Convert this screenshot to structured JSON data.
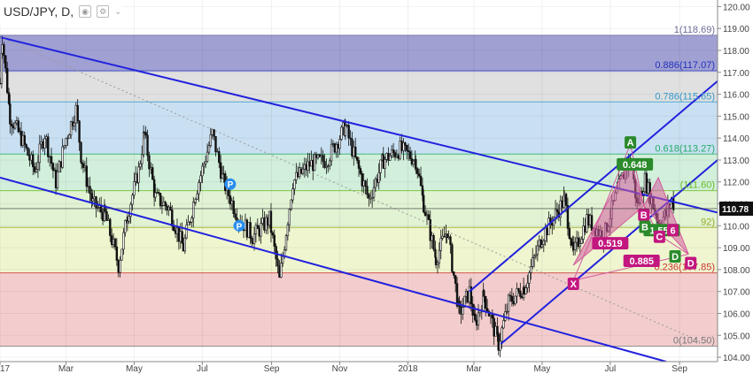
{
  "header": {
    "symbol_label": "USD/JPY, D,",
    "icons": [
      "eye-icon",
      "settings-icon",
      "chevron-down-icon"
    ]
  },
  "chart_data": {
    "type": "candlestick",
    "price_axis": {
      "range": [
        103.8,
        120.3
      ],
      "ticks": [
        "120.00",
        "119.00",
        "118.00",
        "117.00",
        "116.00",
        "115.00",
        "114.00",
        "113.00",
        "112.00",
        "111.00",
        "110.00",
        "109.00",
        "108.00",
        "107.00",
        "106.00",
        "105.00",
        "104.00"
      ],
      "current_price": "110.78",
      "current_price_value": 110.78
    },
    "time_axis": {
      "range": [
        "2017-01-01",
        "2018-10-05"
      ],
      "ticks": [
        {
          "label": "2017",
          "date": "2017-01-01"
        },
        {
          "label": "Mar",
          "date": "2017-03-01"
        },
        {
          "label": "May",
          "date": "2017-05-01"
        },
        {
          "label": "Jul",
          "date": "2017-07-01"
        },
        {
          "label": "Sep",
          "date": "2017-09-01"
        },
        {
          "label": "Nov",
          "date": "2017-11-01"
        },
        {
          "label": "2018",
          "date": "2018-01-01"
        },
        {
          "label": "Mar",
          "date": "2018-03-01"
        },
        {
          "label": "May",
          "date": "2018-05-01"
        },
        {
          "label": "Jul",
          "date": "2018-07-01"
        },
        {
          "label": "Sep",
          "date": "2018-09-01"
        }
      ]
    },
    "price_path": [
      [
        "2017-01-01",
        116.5
      ],
      [
        "2017-01-03",
        118.6
      ],
      [
        "2017-01-10",
        115.0
      ],
      [
        "2017-01-20",
        114.0
      ],
      [
        "2017-02-01",
        112.5
      ],
      [
        "2017-02-10",
        114.2
      ],
      [
        "2017-02-20",
        112.0
      ],
      [
        "2017-03-01",
        114.0
      ],
      [
        "2017-03-10",
        115.3
      ],
      [
        "2017-03-15",
        113.0
      ],
      [
        "2017-03-25",
        111.0
      ],
      [
        "2017-04-05",
        110.5
      ],
      [
        "2017-04-17",
        108.2
      ],
      [
        "2017-04-25",
        110.5
      ],
      [
        "2017-05-05",
        112.5
      ],
      [
        "2017-05-10",
        114.2
      ],
      [
        "2017-05-20",
        111.3
      ],
      [
        "2017-06-01",
        110.8
      ],
      [
        "2017-06-14",
        109.0
      ],
      [
        "2017-06-25",
        111.5
      ],
      [
        "2017-07-10",
        114.2
      ],
      [
        "2017-07-20",
        112.0
      ],
      [
        "2017-08-01",
        110.5
      ],
      [
        "2017-08-15",
        109.5
      ],
      [
        "2017-08-30",
        110.3
      ],
      [
        "2017-09-08",
        107.5
      ],
      [
        "2017-09-20",
        112.0
      ],
      [
        "2017-10-05",
        112.8
      ],
      [
        "2017-10-20",
        113.0
      ],
      [
        "2017-11-06",
        114.5
      ],
      [
        "2017-11-15",
        113.0
      ],
      [
        "2017-11-27",
        111.2
      ],
      [
        "2017-12-10",
        113.0
      ],
      [
        "2017-12-25",
        113.5
      ],
      [
        "2018-01-08",
        113.0
      ],
      [
        "2018-01-15",
        111.0
      ],
      [
        "2018-01-26",
        108.5
      ],
      [
        "2018-02-05",
        109.8
      ],
      [
        "2018-02-16",
        106.0
      ],
      [
        "2018-02-25",
        107.0
      ],
      [
        "2018-03-02",
        105.5
      ],
      [
        "2018-03-10",
        106.8
      ],
      [
        "2018-03-23",
        104.6
      ],
      [
        "2018-04-01",
        106.5
      ],
      [
        "2018-04-15",
        107.2
      ],
      [
        "2018-05-01",
        109.5
      ],
      [
        "2018-05-21",
        111.2
      ],
      [
        "2018-05-29",
        108.7
      ],
      [
        "2018-06-10",
        110.3
      ],
      [
        "2018-06-25",
        109.5
      ],
      [
        "2018-07-10",
        112.0
      ],
      [
        "2018-07-19",
        113.1
      ],
      [
        "2018-07-25",
        110.9
      ],
      [
        "2018-08-01",
        112.1
      ],
      [
        "2018-08-13",
        110.2
      ],
      [
        "2018-08-20",
        110.5
      ],
      [
        "2018-08-25",
        111.2
      ],
      [
        "2018-08-28",
        110.8
      ]
    ],
    "trend_lines": [
      {
        "name": "upper-channel",
        "color": "#2222dd",
        "from": [
          "2017-01-01",
          118.6
        ],
        "to": [
          "2018-10-05",
          110.6
        ]
      },
      {
        "name": "lower-channel",
        "color": "#2222dd",
        "from": [
          "2017-01-01",
          112.2
        ],
        "to": [
          "2018-08-20",
          103.8
        ]
      },
      {
        "name": "steep-upper",
        "color": "#2222dd",
        "from": [
          "2018-02-25",
          107.0
        ],
        "to": [
          "2018-10-05",
          116.6
        ]
      },
      {
        "name": "steep-lower",
        "color": "#2222dd",
        "from": [
          "2018-03-25",
          104.6
        ],
        "to": [
          "2018-10-05",
          113.0
        ]
      },
      {
        "name": "diagonal-dotted",
        "color": "#999999",
        "dashed": true,
        "from": [
          "2017-01-01",
          118.6
        ],
        "to": [
          "2018-09-25",
          104.6
        ]
      }
    ],
    "fibonacci": {
      "from_date": "2017-01-01",
      "to_date": "2018-10-05",
      "levels": [
        {
          "ratio": "1",
          "price": 118.69,
          "label": "1(118.69)",
          "fill": "#8080c4",
          "text_color": "#6d6d9a"
        },
        {
          "ratio": "0.886",
          "price": 117.07,
          "label": "0.886(117.07)",
          "fill": "#d6d6d6",
          "text_color": "#2233bb"
        },
        {
          "ratio": "0.786",
          "price": 115.65,
          "label": "0.786(115.65)",
          "fill": "#b7d6ee",
          "text_color": "#3399cc"
        },
        {
          "ratio": "0.618",
          "price": 113.27,
          "label": "0.618(113.27)",
          "fill": "#c2eacf",
          "text_color": "#22aa66"
        },
        {
          "ratio": "0.5",
          "price": 111.6,
          "label": "(111.60)",
          "fill": "#d7efc4",
          "text_color": "#66bb22"
        },
        {
          "ratio": "0.382",
          "price": 109.92,
          "label": "92)",
          "fill": "#e9f1bf",
          "text_color": "#99aa22"
        },
        {
          "ratio": "0.236",
          "price": 107.85,
          "label": "0.236(107.85)",
          "fill": "#efbcbc",
          "text_color": "#cc3333"
        },
        {
          "ratio": "0",
          "price": 104.5,
          "label": "0(104.50)",
          "fill": "",
          "text_color": "#777777"
        }
      ]
    },
    "harmonic_pattern": {
      "fill": "#d45b9e",
      "points": [
        {
          "name": "X",
          "date": "2018-05-29",
          "price": 107.5
        },
        {
          "name": "A",
          "date": "2018-07-19",
          "price": 113.7
        },
        {
          "name": "B",
          "date": "2018-07-31",
          "price": 110.9
        },
        {
          "name": "C",
          "date": "2018-08-13",
          "price": 109.6
        },
        {
          "name": "D",
          "date": "2018-09-09",
          "price": 108.7
        }
      ],
      "triangles": [
        [
          [
            "2018-05-29",
            108.2
          ],
          [
            "2018-07-19",
            113.0
          ],
          [
            "2018-07-31",
            110.9
          ]
        ],
        [
          [
            "2018-07-31",
            110.9
          ],
          [
            "2018-08-13",
            112.2
          ],
          [
            "2018-09-09",
            108.7
          ]
        ]
      ],
      "ratio_labels": [
        {
          "text": "0.648",
          "date": "2018-07-23",
          "price": 112.8,
          "color": "#2b8a2b"
        },
        {
          "text": "0.519",
          "date": "2018-07-01",
          "price": 109.2,
          "color": "#c2177f"
        },
        {
          "text": "1.551",
          "date": "2018-08-16",
          "price": 109.8,
          "color": "#2b8a2b"
        },
        {
          "text": "0.885",
          "date": "2018-07-29",
          "price": 108.4,
          "color": "#c2177f"
        },
        {
          "text": "6",
          "date": "2018-08-26",
          "price": 109.8,
          "color": "#c2177f"
        }
      ],
      "vertex_labels": [
        {
          "text": "X",
          "date": "2018-05-29",
          "price": 107.35,
          "color": "#c2177f"
        },
        {
          "text": "A",
          "date": "2018-07-19",
          "price": 113.8,
          "color": "#2b8a2b"
        },
        {
          "text": "B",
          "date": "2018-07-31",
          "price": 110.5,
          "color": "#c2177f"
        },
        {
          "text": "B",
          "date": "2018-08-01",
          "price": 109.95,
          "color": "#2b8a2b"
        },
        {
          "text": "C",
          "date": "2018-08-14",
          "price": 109.5,
          "color": "#c2177f"
        },
        {
          "text": "D",
          "date": "2018-08-28",
          "price": 108.6,
          "color": "#2b8a2b"
        },
        {
          "text": "D",
          "date": "2018-09-11",
          "price": 108.3,
          "color": "#c2177f"
        }
      ]
    },
    "markers": [
      {
        "text": "P",
        "date": "2017-07-26",
        "price": 111.9,
        "color": "#2a8ff0"
      },
      {
        "text": "P",
        "date": "2017-08-03",
        "price": 110.0,
        "color": "#2a8ff0"
      }
    ]
  }
}
